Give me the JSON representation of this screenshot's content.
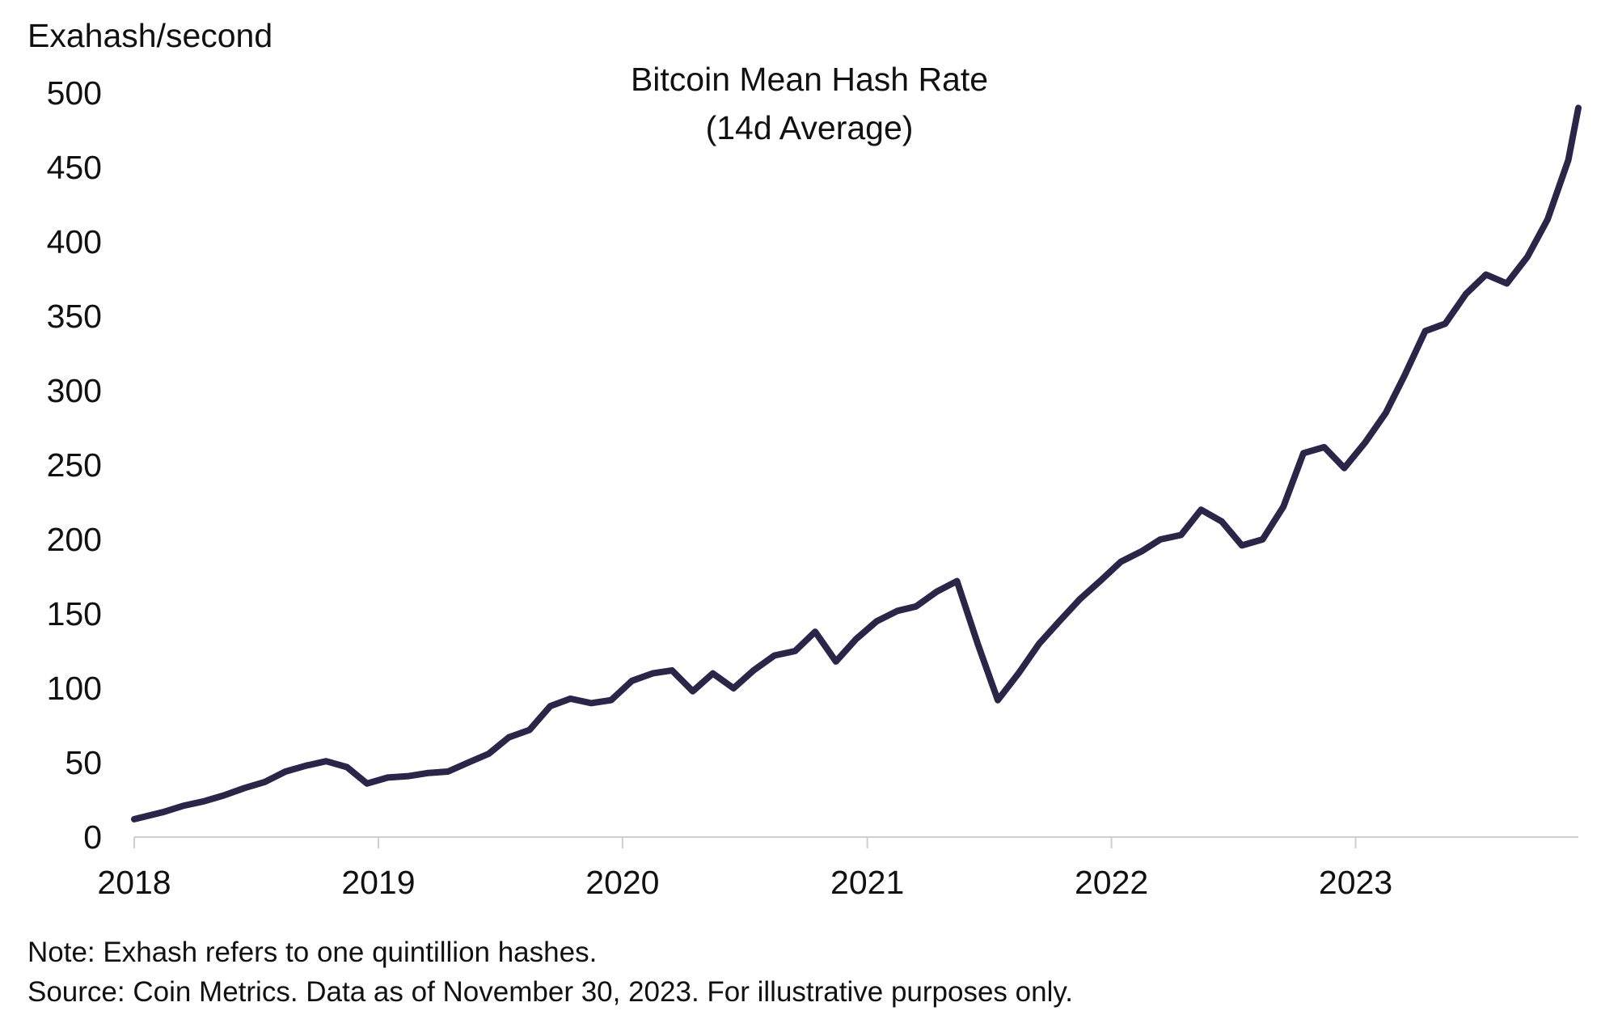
{
  "chart_data": {
    "type": "line",
    "title": "Bitcoin Mean Hash Rate",
    "subtitle": "(14d Average)",
    "ylabel": "Exahash/second",
    "xlabel": "",
    "ylim": [
      0,
      500
    ],
    "yticks": [
      "0",
      "50",
      "100",
      "150",
      "200",
      "250",
      "300",
      "350",
      "400",
      "450",
      "500"
    ],
    "xticks": [
      "2018",
      "2019",
      "2020",
      "2021",
      "2022",
      "2023"
    ],
    "xlim": [
      "2018-01-01",
      "2023-11-30"
    ],
    "grid": false,
    "line_color": "#2b2548",
    "series": [
      {
        "x": [
          "2018-01",
          "2018-02",
          "2018-03",
          "2018-04",
          "2018-05",
          "2018-06",
          "2018-07",
          "2018-08",
          "2018-09",
          "2018-10",
          "2018-11",
          "2018-12",
          "2019-01",
          "2019-02",
          "2019-03",
          "2019-04",
          "2019-05",
          "2019-06",
          "2019-07",
          "2019-08",
          "2019-09",
          "2019-10",
          "2019-11",
          "2019-12",
          "2020-01",
          "2020-02",
          "2020-03",
          "2020-04",
          "2020-05",
          "2020-06",
          "2020-07",
          "2020-08",
          "2020-09",
          "2020-10",
          "2020-11",
          "2020-12",
          "2021-01",
          "2021-02",
          "2021-03",
          "2021-04",
          "2021-05",
          "2021-06",
          "2021-07",
          "2021-08",
          "2021-09",
          "2021-10",
          "2021-11",
          "2021-12",
          "2022-01",
          "2022-02",
          "2022-03",
          "2022-04",
          "2022-05",
          "2022-06",
          "2022-07",
          "2022-08",
          "2022-09",
          "2022-10",
          "2022-11",
          "2022-12",
          "2023-01",
          "2023-02",
          "2023-03",
          "2023-04",
          "2023-05",
          "2023-06",
          "2023-07",
          "2023-08",
          "2023-09",
          "2023-10",
          "2023-11",
          "2023-11-30"
        ],
        "values": [
          12,
          17,
          21,
          24,
          28,
          33,
          37,
          44,
          48,
          51,
          47,
          36,
          40,
          41,
          43,
          44,
          50,
          56,
          67,
          72,
          88,
          93,
          90,
          92,
          105,
          110,
          112,
          98,
          110,
          100,
          112,
          122,
          125,
          138,
          118,
          133,
          145,
          152,
          155,
          165,
          172,
          130,
          92,
          110,
          130,
          145,
          160,
          172,
          185,
          192,
          200,
          203,
          220,
          212,
          196,
          200,
          222,
          258,
          262,
          248,
          265,
          285,
          310,
          340,
          345,
          365,
          378,
          372,
          390,
          415,
          455,
          490
        ]
      }
    ]
  },
  "notes": {
    "note": "Note: Exhash refers to one quintillion hashes.",
    "source": "Source: Coin Metrics. Data as of November 30, 2023. For illustrative purposes only."
  }
}
